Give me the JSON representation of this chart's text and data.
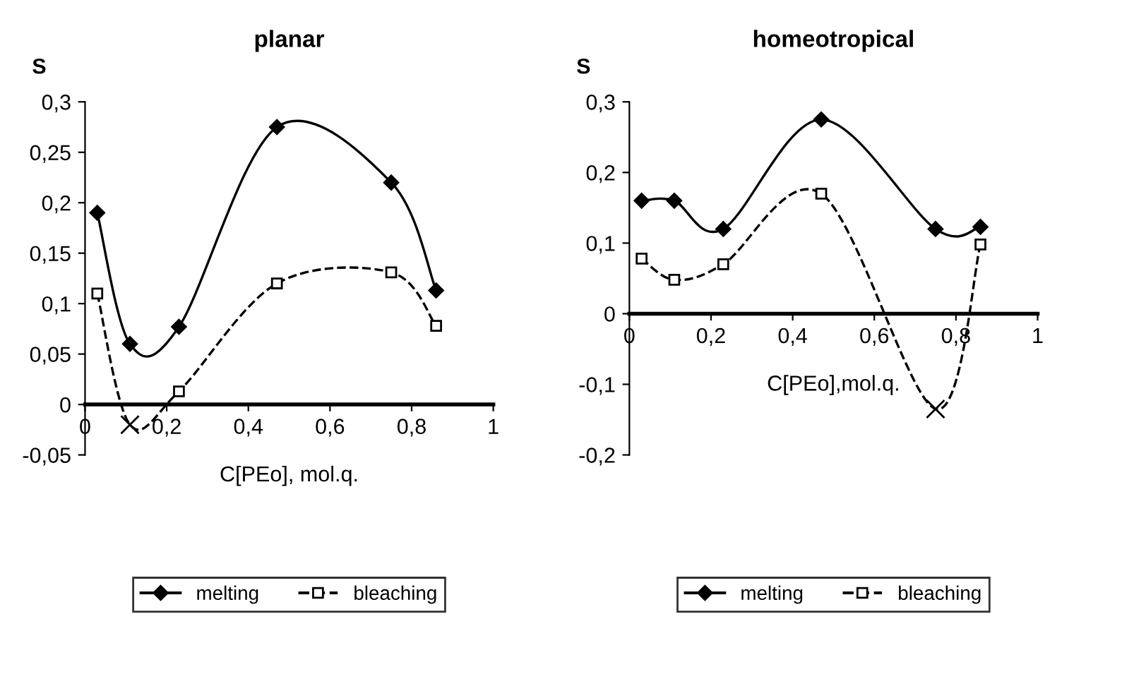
{
  "chart_data": [
    {
      "type": "line",
      "title": "planar",
      "ylabel": "S",
      "xlabel": "C[PEo], mol.q.",
      "legend": "bottom",
      "grid": false,
      "xlim": [
        0,
        1
      ],
      "xticks": [
        0,
        {
          "value": 0.2,
          "label": "0,2"
        },
        {
          "value": 0.4,
          "label": "0,4"
        },
        {
          "value": 0.6,
          "label": "0,6"
        },
        {
          "value": 0.8,
          "label": "0,8"
        },
        1
      ],
      "ylim": [
        -0.05,
        0.3
      ],
      "yticks": [
        {
          "value": -0.05,
          "label": "-0,05"
        },
        0,
        {
          "value": 0.05,
          "label": "0,05"
        },
        {
          "value": 0.1,
          "label": "0,1"
        },
        {
          "value": 0.15,
          "label": "0,15"
        },
        {
          "value": 0.2,
          "label": "0,2"
        },
        {
          "value": 0.25,
          "label": "0,25"
        },
        {
          "value": 0.3,
          "label": "0,3"
        }
      ],
      "series": [
        {
          "name": "melting",
          "color": "#000000",
          "marker": "diamond",
          "line_style": "solid",
          "x": [
            0.03,
            0.11,
            0.23,
            0.47,
            0.75,
            0.86
          ],
          "values": [
            0.19,
            0.06,
            0.077,
            0.275,
            0.22,
            0.113
          ]
        },
        {
          "name": "bleaching",
          "color": "#000000",
          "marker": "square",
          "line_style": "dashed",
          "x": [
            0.03,
            0.11,
            0.23,
            0.47,
            0.75,
            0.86
          ],
          "values": [
            0.11,
            -0.02,
            0.013,
            0.12,
            0.131,
            0.078
          ]
        },
        {
          "type": "scatter",
          "color": "#000000",
          "marker": "cross",
          "x": [
            0.11
          ],
          "values": [
            -0.02
          ]
        }
      ]
    },
    {
      "type": "line",
      "title": "homeotropical",
      "ylabel": "S",
      "xlabel": "C[PEo],mol.q.",
      "legend": "bottom",
      "grid": false,
      "xlim": [
        0,
        1
      ],
      "xticks": [
        0,
        {
          "value": 0.2,
          "label": "0,2"
        },
        {
          "value": 0.4,
          "label": "0,4"
        },
        {
          "value": 0.6,
          "label": "0,6"
        },
        {
          "value": 0.8,
          "label": "0,8"
        },
        1
      ],
      "ylim": [
        -0.2,
        0.3
      ],
      "yticks": [
        {
          "value": -0.2,
          "label": "-0,2"
        },
        {
          "value": -0.1,
          "label": "-0,1"
        },
        0,
        {
          "value": 0.1,
          "label": "0,1"
        },
        {
          "value": 0.2,
          "label": "0,2"
        },
        {
          "value": 0.3,
          "label": "0,3"
        }
      ],
      "series": [
        {
          "name": "melting",
          "color": "#000000",
          "marker": "diamond",
          "line_style": "solid",
          "x": [
            0.03,
            0.11,
            0.23,
            0.47,
            0.75,
            0.86
          ],
          "values": [
            0.16,
            0.16,
            0.12,
            0.275,
            0.12,
            0.123
          ]
        },
        {
          "name": "bleaching",
          "color": "#000000",
          "marker": "square",
          "line_style": "dashed",
          "x": [
            0.03,
            0.11,
            0.23,
            0.47,
            0.75,
            0.86
          ],
          "values": [
            0.078,
            0.048,
            0.07,
            0.17,
            -0.135,
            0.098
          ]
        },
        {
          "type": "scatter",
          "color": "#000000",
          "marker": "cross",
          "x": [
            0.75
          ],
          "values": [
            -0.135
          ]
        }
      ]
    }
  ]
}
